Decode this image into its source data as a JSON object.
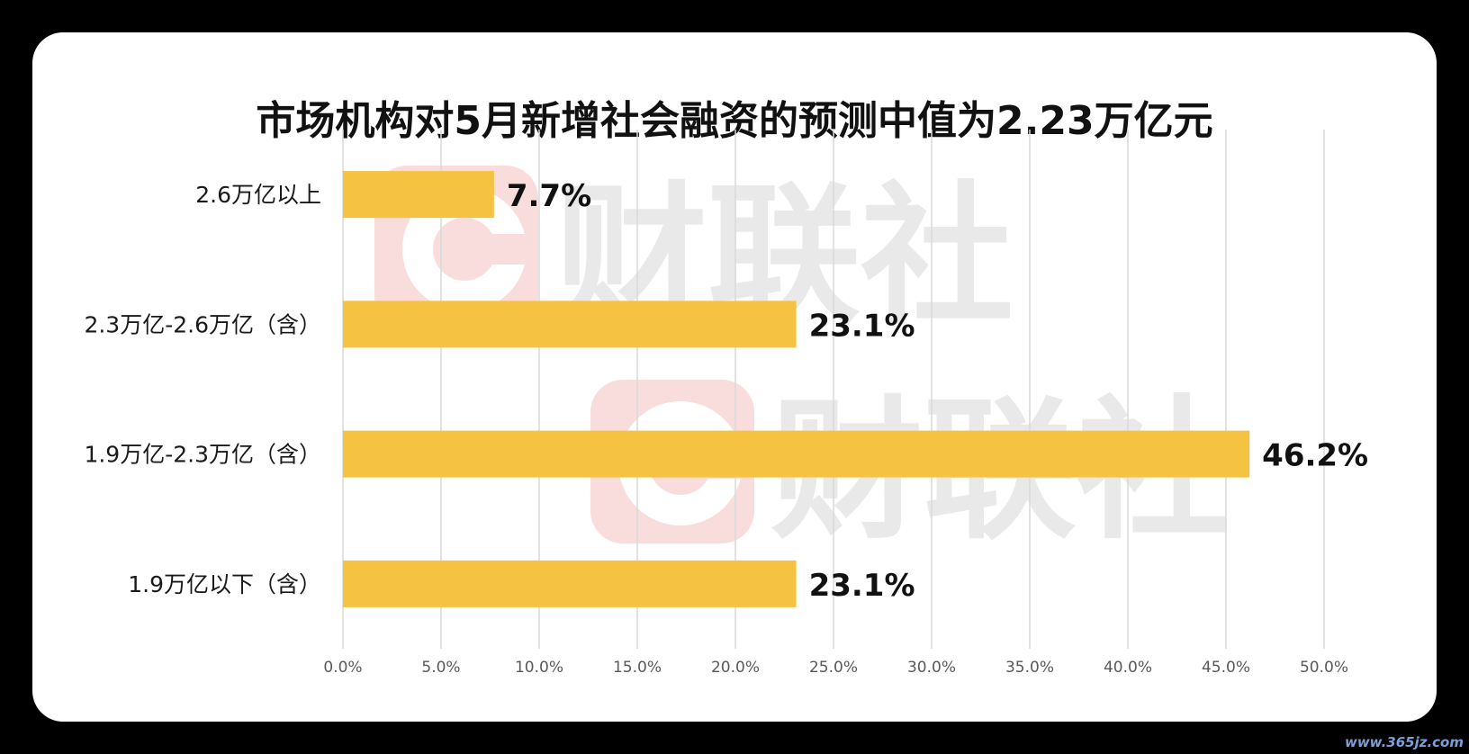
{
  "chart_data": {
    "type": "bar",
    "orientation": "horizontal",
    "title": "市场机构对5月新增社会融资的预测中值为2.23万亿元",
    "categories": [
      "2.6万亿以上",
      "2.3万亿-2.6万亿（含）",
      "1.9万亿-2.3万亿（含）",
      "1.9万亿以下（含）"
    ],
    "values": [
      7.7,
      23.1,
      46.2,
      23.1
    ],
    "data_labels": [
      "7.7%",
      "23.1%",
      "46.2%",
      "23.1%"
    ],
    "xlim": [
      0,
      50
    ],
    "x_ticks": [
      "0.0%",
      "5.0%",
      "10.0%",
      "15.0%",
      "20.0%",
      "25.0%",
      "30.0%",
      "35.0%",
      "40.0%",
      "45.0%",
      "50.0%"
    ],
    "xlabel": "",
    "ylabel": "",
    "grid": "vertical",
    "legend": "none",
    "bar_color": "#F5C242"
  },
  "watermark": {
    "text": "财联社",
    "color": "#E9E9E9",
    "logo_color": "#F9DDDD"
  },
  "site_mark": "www.365jz.com"
}
